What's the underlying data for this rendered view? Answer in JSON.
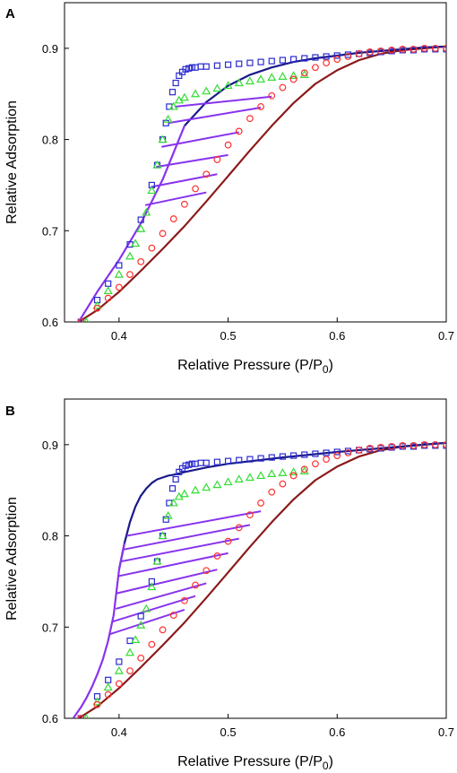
{
  "chart_data": [
    {
      "panel_label": "A",
      "type": "line",
      "xlabel_main": "Relative Pressure (P/P",
      "xlabel_sub": "0",
      "xlabel_end": ")",
      "ylabel": "Relative Adsorption",
      "xlim": [
        0.35,
        0.7
      ],
      "ylim": [
        0.6,
        0.95
      ],
      "xticks": [
        "0.4",
        "0.5",
        "0.6",
        "0.7"
      ],
      "yticks": [
        "0.6",
        "0.7",
        "0.8",
        "0.9"
      ],
      "series": [
        {
          "marker": "square",
          "color": "#2b2bd0",
          "x": [
            0.365,
            0.38,
            0.39,
            0.4,
            0.41,
            0.42,
            0.43,
            0.435,
            0.44,
            0.443,
            0.446,
            0.449,
            0.452,
            0.455,
            0.458,
            0.461,
            0.464,
            0.467,
            0.47,
            0.475,
            0.48,
            0.49,
            0.5,
            0.51,
            0.52,
            0.53,
            0.54,
            0.55,
            0.56,
            0.57,
            0.58,
            0.59,
            0.6,
            0.61,
            0.62,
            0.63,
            0.64,
            0.65,
            0.66,
            0.67,
            0.68,
            0.69,
            0.7
          ],
          "y": [
            0.6,
            0.624,
            0.642,
            0.662,
            0.685,
            0.712,
            0.75,
            0.772,
            0.8,
            0.818,
            0.836,
            0.852,
            0.862,
            0.87,
            0.874,
            0.877,
            0.878,
            0.879,
            0.879,
            0.88,
            0.88,
            0.881,
            0.882,
            0.883,
            0.884,
            0.885,
            0.886,
            0.887,
            0.888,
            0.889,
            0.89,
            0.891,
            0.892,
            0.893,
            0.894,
            0.895,
            0.896,
            0.897,
            0.898,
            0.898,
            0.899,
            0.899,
            0.899
          ]
        },
        {
          "marker": "triangle",
          "color": "#33dd33",
          "x": [
            0.37,
            0.38,
            0.39,
            0.4,
            0.41,
            0.415,
            0.42,
            0.425,
            0.43,
            0.435,
            0.44,
            0.445,
            0.45,
            0.455,
            0.46,
            0.47,
            0.48,
            0.49,
            0.5,
            0.51,
            0.52,
            0.53,
            0.54,
            0.55,
            0.56,
            0.57
          ],
          "y": [
            0.6,
            0.618,
            0.634,
            0.652,
            0.672,
            0.686,
            0.702,
            0.72,
            0.744,
            0.772,
            0.8,
            0.822,
            0.836,
            0.843,
            0.846,
            0.85,
            0.853,
            0.856,
            0.859,
            0.862,
            0.864,
            0.866,
            0.868,
            0.869,
            0.87,
            0.871
          ]
        },
        {
          "marker": "circle",
          "color": "#ff3030",
          "x": [
            0.365,
            0.38,
            0.39,
            0.4,
            0.41,
            0.42,
            0.43,
            0.44,
            0.45,
            0.46,
            0.47,
            0.48,
            0.49,
            0.5,
            0.51,
            0.52,
            0.53,
            0.54,
            0.55,
            0.56,
            0.57,
            0.58,
            0.59,
            0.6,
            0.61,
            0.62,
            0.63,
            0.64,
            0.65,
            0.66,
            0.67,
            0.68,
            0.69,
            0.7
          ],
          "y": [
            0.6,
            0.615,
            0.626,
            0.638,
            0.652,
            0.666,
            0.681,
            0.697,
            0.713,
            0.729,
            0.746,
            0.762,
            0.778,
            0.794,
            0.809,
            0.823,
            0.836,
            0.848,
            0.857,
            0.866,
            0.873,
            0.879,
            0.884,
            0.888,
            0.891,
            0.894,
            0.896,
            0.897,
            0.898,
            0.899,
            0.899,
            0.9,
            0.9,
            0.9
          ]
        },
        {
          "marker": "line",
          "color": "#8b1a1a",
          "x": [
            0.363,
            0.38,
            0.4,
            0.42,
            0.44,
            0.46,
            0.48,
            0.5,
            0.52,
            0.54,
            0.56,
            0.58,
            0.6,
            0.62,
            0.64,
            0.66,
            0.68,
            0.7
          ],
          "y": [
            0.6,
            0.613,
            0.633,
            0.656,
            0.68,
            0.705,
            0.732,
            0.76,
            0.788,
            0.815,
            0.84,
            0.861,
            0.876,
            0.887,
            0.894,
            0.898,
            0.9,
            0.902
          ]
        },
        {
          "marker": "line",
          "color": "#1a1a8b",
          "x": [
            0.46,
            0.48,
            0.5,
            0.52,
            0.54,
            0.56,
            0.58,
            0.6,
            0.62,
            0.64,
            0.66,
            0.68,
            0.7
          ],
          "y": [
            0.815,
            0.841,
            0.859,
            0.871,
            0.879,
            0.885,
            0.889,
            0.892,
            0.895,
            0.897,
            0.899,
            0.901,
            0.902
          ]
        },
        {
          "marker": "line",
          "color": "#8833ee",
          "x": [
            0.363,
            0.38,
            0.4,
            0.42,
            0.44,
            0.46
          ],
          "y": [
            0.6,
            0.633,
            0.668,
            0.708,
            0.756,
            0.815
          ]
        }
      ],
      "scanning_lines": {
        "color": "#8833ee",
        "segments": [
          {
            "x": [
              0.424,
              0.48
            ],
            "y": [
              0.728,
              0.742
            ]
          },
          {
            "x": [
              0.429,
              0.49
            ],
            "y": [
              0.748,
              0.762
            ]
          },
          {
            "x": [
              0.434,
              0.5
            ],
            "y": [
              0.77,
              0.783
            ]
          },
          {
            "x": [
              0.439,
              0.51
            ],
            "y": [
              0.792,
              0.808
            ]
          },
          {
            "x": [
              0.445,
              0.53
            ],
            "y": [
              0.818,
              0.835
            ]
          },
          {
            "x": [
              0.451,
              0.54
            ],
            "y": [
              0.836,
              0.847
            ]
          }
        ]
      }
    },
    {
      "panel_label": "B",
      "type": "line",
      "xlabel_main": "Relative Pressure (P/P",
      "xlabel_sub": "0",
      "xlabel_end": ")",
      "ylabel": "Relative Adsorption",
      "xlim": [
        0.35,
        0.7
      ],
      "ylim": [
        0.6,
        0.95
      ],
      "xticks": [
        "0.4",
        "0.5",
        "0.6",
        "0.7"
      ],
      "yticks": [
        "0.6",
        "0.7",
        "0.8",
        "0.9"
      ],
      "series": [
        {
          "marker": "square",
          "color": "#2b2bd0",
          "x": [
            0.365,
            0.38,
            0.39,
            0.4,
            0.41,
            0.42,
            0.43,
            0.435,
            0.44,
            0.443,
            0.446,
            0.449,
            0.452,
            0.455,
            0.458,
            0.461,
            0.464,
            0.467,
            0.47,
            0.475,
            0.48,
            0.49,
            0.5,
            0.51,
            0.52,
            0.53,
            0.54,
            0.55,
            0.56,
            0.57,
            0.58,
            0.59,
            0.6,
            0.61,
            0.62,
            0.63,
            0.64,
            0.65,
            0.66,
            0.67,
            0.68,
            0.69,
            0.7
          ],
          "y": [
            0.6,
            0.624,
            0.642,
            0.662,
            0.685,
            0.712,
            0.75,
            0.772,
            0.8,
            0.818,
            0.836,
            0.852,
            0.862,
            0.87,
            0.874,
            0.877,
            0.878,
            0.879,
            0.879,
            0.88,
            0.88,
            0.881,
            0.882,
            0.883,
            0.884,
            0.885,
            0.886,
            0.887,
            0.888,
            0.889,
            0.89,
            0.891,
            0.892,
            0.893,
            0.894,
            0.895,
            0.896,
            0.897,
            0.898,
            0.898,
            0.899,
            0.899,
            0.899
          ]
        },
        {
          "marker": "triangle",
          "color": "#33dd33",
          "x": [
            0.37,
            0.38,
            0.39,
            0.4,
            0.41,
            0.415,
            0.42,
            0.425,
            0.43,
            0.435,
            0.44,
            0.445,
            0.45,
            0.455,
            0.46,
            0.47,
            0.48,
            0.49,
            0.5,
            0.51,
            0.52,
            0.53,
            0.54,
            0.55,
            0.56,
            0.57
          ],
          "y": [
            0.6,
            0.618,
            0.634,
            0.652,
            0.672,
            0.686,
            0.702,
            0.72,
            0.744,
            0.772,
            0.8,
            0.822,
            0.836,
            0.843,
            0.846,
            0.85,
            0.853,
            0.856,
            0.859,
            0.862,
            0.864,
            0.866,
            0.868,
            0.869,
            0.87,
            0.871
          ]
        },
        {
          "marker": "circle",
          "color": "#ff3030",
          "x": [
            0.365,
            0.38,
            0.39,
            0.4,
            0.41,
            0.42,
            0.43,
            0.44,
            0.45,
            0.46,
            0.47,
            0.48,
            0.49,
            0.5,
            0.51,
            0.52,
            0.53,
            0.54,
            0.55,
            0.56,
            0.57,
            0.58,
            0.59,
            0.6,
            0.61,
            0.62,
            0.63,
            0.64,
            0.65,
            0.66,
            0.67,
            0.68,
            0.69,
            0.7
          ],
          "y": [
            0.6,
            0.615,
            0.626,
            0.638,
            0.652,
            0.666,
            0.681,
            0.697,
            0.713,
            0.729,
            0.746,
            0.762,
            0.778,
            0.794,
            0.809,
            0.823,
            0.836,
            0.848,
            0.857,
            0.866,
            0.873,
            0.879,
            0.884,
            0.888,
            0.891,
            0.894,
            0.896,
            0.897,
            0.898,
            0.899,
            0.899,
            0.9,
            0.9,
            0.9
          ]
        },
        {
          "marker": "line",
          "color": "#8b1a1a",
          "x": [
            0.363,
            0.38,
            0.4,
            0.42,
            0.44,
            0.46,
            0.48,
            0.5,
            0.52,
            0.54,
            0.56,
            0.58,
            0.6,
            0.62,
            0.64,
            0.66,
            0.68,
            0.7
          ],
          "y": [
            0.6,
            0.613,
            0.633,
            0.656,
            0.68,
            0.705,
            0.732,
            0.76,
            0.788,
            0.815,
            0.84,
            0.861,
            0.876,
            0.887,
            0.894,
            0.898,
            0.9,
            0.902
          ]
        },
        {
          "marker": "line",
          "color": "#1a1a8b",
          "x": [
            0.4,
            0.405,
            0.41,
            0.415,
            0.42,
            0.425,
            0.43,
            0.435,
            0.44,
            0.445,
            0.45,
            0.46,
            0.48,
            0.5,
            0.55,
            0.6,
            0.65,
            0.7
          ],
          "y": [
            0.763,
            0.792,
            0.815,
            0.832,
            0.844,
            0.852,
            0.858,
            0.862,
            0.864,
            0.866,
            0.867,
            0.87,
            0.875,
            0.879,
            0.886,
            0.892,
            0.897,
            0.902
          ]
        },
        {
          "marker": "line",
          "color": "#8833ee",
          "x": [
            0.358,
            0.365,
            0.37,
            0.375,
            0.38,
            0.385,
            0.39,
            0.395,
            0.4,
            0.405
          ],
          "y": [
            0.6,
            0.612,
            0.622,
            0.634,
            0.648,
            0.664,
            0.685,
            0.713,
            0.763,
            0.792
          ]
        }
      ],
      "scanning_lines": {
        "color": "#8833ee",
        "segments": [
          {
            "x": [
              0.391,
              0.46
            ],
            "y": [
              0.692,
              0.719
            ]
          },
          {
            "x": [
              0.394,
              0.47
            ],
            "y": [
              0.706,
              0.734
            ]
          },
          {
            "x": [
              0.397,
              0.48
            ],
            "y": [
              0.72,
              0.748
            ]
          },
          {
            "x": [
              0.398,
              0.49
            ],
            "y": [
              0.737,
              0.763
            ]
          },
          {
            "x": [
              0.4,
              0.5
            ],
            "y": [
              0.756,
              0.781
            ]
          },
          {
            "x": [
              0.402,
              0.51
            ],
            "y": [
              0.772,
              0.797
            ]
          },
          {
            "x": [
              0.404,
              0.52
            ],
            "y": [
              0.785,
              0.812
            ]
          },
          {
            "x": [
              0.407,
              0.53
            ],
            "y": [
              0.8,
              0.827
            ]
          }
        ]
      }
    }
  ]
}
